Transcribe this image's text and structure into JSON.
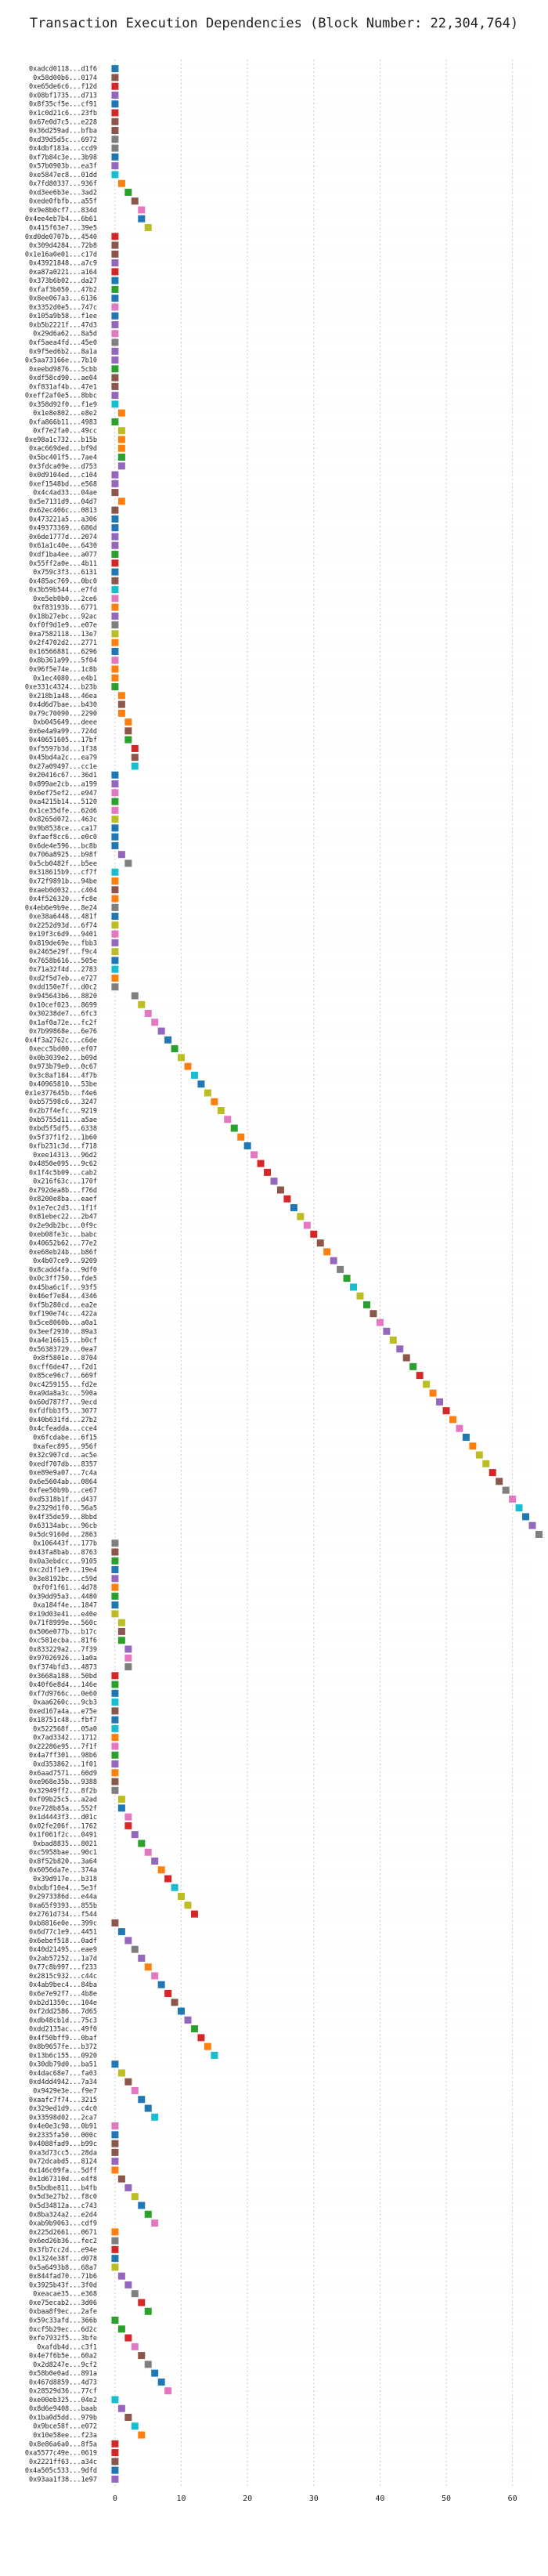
{
  "chart_data": {
    "type": "scatter",
    "title": "Transaction Execution Dependencies (Block Number: 22,304,764)",
    "xlabel": "",
    "ylabel": "",
    "xlim": [
      -2,
      63
    ],
    "xticks": [
      0,
      10,
      20,
      30,
      40,
      50,
      60
    ],
    "grid": "vertical dashed",
    "palette": [
      "#1f77b4",
      "#ff7f0e",
      "#2ca02c",
      "#d62728",
      "#9467bd",
      "#8c564b",
      "#e377c2",
      "#7f7f7f",
      "#bcbd22",
      "#17becf"
    ],
    "series": [
      {
        "labels": [
          "0xadcd0118...d1f6",
          "0x58d00b6...0174",
          "0xe65de6c6...f12d",
          "0x08bf1735...d713",
          "0x8f35cf5e...cf91",
          "0x1c0d21c6...23fb",
          "0x67e0d7c5...e228",
          "0x36d259ad...bfba",
          "0xd39d5d5c...6972",
          "0x4dbf183a...ccd9",
          "0xf7b84c3e...3b98",
          "0x57b0903b...ea3f",
          "0xe5847ec8...01dd",
          "0x7fd80337...936f",
          "0xd3ee6b3e...3ad2",
          "0xede0fbfb...a55f",
          "0x9e8b0cf7...834d",
          "0x4ee4eb7b4...6b61",
          "0x415f63e7...39e5",
          "0xd0de0707b...4540",
          "0x309d4284...72b8",
          "0x1e16a0e01...c17d",
          "0x43921848...a7c9",
          "0xa87a0221...a164",
          "0x373b6b02...da27",
          "0xfaf3b050...47b2",
          "0x8ee067a3...6136",
          "0x3352d0e5...747c",
          "0x105a9b58...f1ee",
          "0xb5b2221f...47d3",
          "0x29d6a62...8a5d",
          "0xf5aea4fd...45e0",
          "0x9f5ed6b2...8a1a",
          "0x5aa73166e...7b10",
          "0xeebd9876...5cbb",
          "0xdf58cd90...ae04",
          "0xf831af4b...47e1",
          "0xeff2af0e5...8bbc",
          "0x358d92f0...f1e9",
          "0x1e8e802...e8e2",
          "0xfa866b11...4983",
          "0xf7e2fa0...49cc",
          "0xe98a1c732...b15b",
          "0xac669ded...bf9d",
          "0x5bc401f5...7ae4",
          "0x3fdca09e...d753",
          "0x0d9104ed...c104",
          "0xef1548bd...e568",
          "0x4c4ad33...04ae",
          "0x5e7131d9...04d7",
          "0x62ec406c...0813",
          "0x473221a5...a306",
          "0x49373369...686d",
          "0x6de1777d...2074",
          "0x61a1c40e...6430",
          "0xdf1ba4ee...a077",
          "0x55ff2a0e...4b11",
          "0x759c3f3...6131",
          "0x485ac769...0bc0",
          "0x3b59b544...e7fd",
          "0xe5eb0b0...2ce6",
          "0xf83193b...6771",
          "0x18b27ebc...92ac",
          "0xf0f9d1e9...e07e",
          "0xa7582118...13e7",
          "0x2f4702d2...2771",
          "0x16566881...6296",
          "0x8b361a99...5f04",
          "0x96f5e74e...1c8b",
          "0x1ec4080...e4b1",
          "0xe331c4324...b23b",
          "0x218b1a48...46ea",
          "0x4d6d7bae...b430",
          "0x79c70090...2290",
          "0xb045649...deee",
          "0x6e4a9a99...724d",
          "0x40651605...17bf",
          "0xf5597b3d...1f38",
          "0x45bd4a2c...ea79",
          "0x27a09497...cc1e",
          "0x20416c67...36d1",
          "0x899ae2cb...a199",
          "0x6ef75ef2...e947",
          "0xa4215b14...5120",
          "0x1ce35dfe...62d6",
          "0x8265d072...463c",
          "0x9b8538ce...ca17",
          "0xfaef8cc6...e0c0",
          "0x6de4e596...bc8b",
          "0x706a8925...b98f",
          "0x5cb0482f...b5ee",
          "0x318615b9...cf7f",
          "0x72f9891b...94be",
          "0xaeb0d032...c404",
          "0x4f526320...fc8e",
          "0x4eb6e9b9e...8e24",
          "0xe38a6448...481f",
          "0x2252d93d...6f74",
          "0x19f3c6d9...9401",
          "0x819de69e...fbb3",
          "0x2465e29f...f9c4",
          "0x7658b616...505e",
          "0x71a32f4d...2783",
          "0xd2f5d7eb...e727",
          "0xdd150e7f...d0c2",
          "0x945643b6...8820",
          "0x10cef023...8699",
          "0x30238de7...6fc3",
          "0x1af0a72e...fc2f",
          "0x7b99868e...6e76",
          "0x4f3a2762c...c6de",
          "0xecc5bd00...ef07",
          "0x0b3039e2...b09d",
          "0x973b79e0...0c67",
          "0x3c8af184...4f7b",
          "0x40965810...53be",
          "0x1e377645b...f4e6",
          "0xb57598c6...3247",
          "0x2b7f4efc...9219",
          "0xb5755d11...a5ae",
          "0xbd5f5df5...6338",
          "0x5f37f1f2...1b60",
          "0xfb231c3d...f718",
          "0xee14313...96d2",
          "0x4850e095...9c62",
          "0x1f4c5b09...cab2",
          "0x216f63c...170f",
          "0x792dea8b...f76d",
          "0x8200e8ba...eaef",
          "0x1e7ec2d3...1f1f",
          "0x81ebec22...2b47",
          "0x2e9db2bc...0f9c",
          "0xeb08fe3c...babc",
          "0x40652b62...77e2",
          "0xe68eb24b...b86f",
          "0x4b07ce9...9209",
          "0x8cadd4fa...9df0",
          "0x0c3ff750...fde5",
          "0x45ba6c1f...93f5",
          "0x46ef7e84...4346",
          "0xf5b280cd...ea2e",
          "0xf190e74c...422a",
          "0x5ce8060b...a0a1",
          "0x3eef2930...89a3",
          "0xa4e16615...b0cf",
          "0x56383729...0ea7",
          "0x8f5801e...8704",
          "0xcff6de47...f2d1",
          "0x85ce96c7...669f",
          "0xc4259155...fd2e",
          "0xa9da8a3c...590a",
          "0x60d787f7...9ecd",
          "0xfdfbb3f5...3077",
          "0x40b631fd...27b2",
          "0x4cfeadda...cce4",
          "0x6fcdabe...6f15",
          "0xafec895...956f",
          "0x32c907cd...ac5e",
          "0xedf707db...8357",
          "0xe89e9a07...7c4a",
          "0x6e5604ab...0864",
          "0xfee50b9b...ce67",
          "0xd5318b1f...d437",
          "0x2329d1f0...56a5",
          "0x4f35de59...8bbd",
          "0x63134abc...96cb",
          "0x5dc9160d...2863",
          "0x106443f...177b",
          "0x43fa8bab...8763",
          "0x0a3ebdcc...9105",
          "0xc2d1f1e9...19e4",
          "0x3e8192bc...c59d",
          "0xf0f1f61...4d78",
          "0x39dd95a3...4480",
          "0xa184f4e...1847",
          "0x19d03e41...e40e",
          "0x71f8999e...560c",
          "0x506e077b...b17c",
          "0xc581ecba...81f6",
          "0x833229a2...7f39",
          "0x97026926...1a0a",
          "0xf374bfd3...4873",
          "0x3668a188...50bd",
          "0x40f6e8d4...146e",
          "0xf7d9766c...0e60",
          "0xaa6260c...9cb3",
          "0xed167a4a...e75e",
          "0x18751c48...fbf7",
          "0x522568f...05a0",
          "0x7ad3342...1712",
          "0x22286e95...7f1f",
          "0x4a7ff301...98b6",
          "0xd353862...1f01",
          "0x6aad7571...60d9",
          "0xe968e35b...9388",
          "0x32949ff2...8f2b",
          "0xf09b25c5...a2ad",
          "0xe728b85a...552f",
          "0x1d4443f3...d01c",
          "0x02fe206f...1762",
          "0x1f061f2c...0491",
          "0xbad8835...8021",
          "0xc5958bae...90c1",
          "0x8f52b820...3a64",
          "0x6056da7e...374a",
          "0x39d917e...b318",
          "0xbdbf10e4...5e3f",
          "0x2973386d...e44a",
          "0xa65f9393...855b",
          "0x2761d734...f544",
          "0xb8816e0e...399c",
          "0x6d77c1e9...4451",
          "0x6ebef518...0adf",
          "0x40d21495...eae9",
          "0x2ab57252...1a7d",
          "0x77c8b997...f233",
          "0x2815c932...c44c",
          "0x4ab9bec4...84ba",
          "0x6e7e92f7...4b8e",
          "0xb2d1350c...104e",
          "0xf2dd2586...7d65",
          "0xdb48cb1d...75c3",
          "0xdd2135ac...49f0",
          "0x4f50bff9...0baf",
          "0x8b9657fe...b372",
          "0x13b6c155...0920",
          "0x30db79d0...ba51",
          "0x4dac68e7...fa03",
          "0xd4dd4942...7a34",
          "0x9429e3e...f9e7",
          "0xaafc7f74...3215",
          "0x329ed1d9...c4c0",
          "0x33598d02...2ca7",
          "0x4e0e3c98...0b91",
          "0x2335fa50...000c",
          "0x4088fad9...b99c",
          "0xa3d73cc5...28da",
          "0x72dcabd5...8124",
          "0x146c09fa...5dff",
          "0x1d67310d...e4f8",
          "0x5bdbe811...b4fb",
          "0x5d3e27b2...f8c0",
          "0x5d34812a...c743",
          "0x8ba324a2...e2d4",
          "0xab9b9063...cdf9",
          "0x225d2661...0671",
          "0x6ed26b36...fec2",
          "0x3fb7cc2d...e94e",
          "0x1324e38f...d078",
          "0x5a6493b8...68a7",
          "0x844fad70...71b6",
          "0x3925b43f...3f0d",
          "0xeacae35...e368",
          "0xe75ecab2...3d06",
          "0xbaa8f9ec...2afe",
          "0x59c33afd...366b",
          "0xcf5b29ec...6d2c",
          "0xfe7932f5...3bfe",
          "0xafdb4d...c3f1",
          "0x4e7f6b5e...60a2",
          "0x2d8247e...9cf2",
          "0x58b0e0ad...891a",
          "0x467d8859...4d73",
          "0x28529d36...77cf",
          "0xe00eb325...04e2",
          "0x8d6e9408...baab",
          "0x1ba0d5dd...979b",
          "0x9bce58f...e072",
          "0x10e58ee...f23a",
          "0x8e86a6a0...8f5a",
          "0xa5577c49e...0619",
          "0x2221ff63...a34c",
          "0x4a505c533...9dfd",
          "0x93aa1f38...1e97"
        ],
        "x": [
          0,
          0,
          0,
          0,
          0,
          0,
          0,
          0,
          0,
          0,
          0,
          0,
          0,
          1,
          2,
          3,
          4,
          4,
          5,
          0,
          0,
          0,
          0,
          0,
          0,
          0,
          0,
          0,
          0,
          0,
          0,
          0,
          0,
          0,
          0,
          0,
          0,
          0,
          0,
          1,
          0,
          1,
          1,
          1,
          1,
          1,
          0,
          0,
          0,
          1,
          0,
          0,
          0,
          0,
          0,
          0,
          0,
          0,
          0,
          0,
          0,
          0,
          0,
          0,
          0,
          0,
          0,
          0,
          0,
          0,
          0,
          1,
          1,
          1,
          2,
          2,
          2,
          3,
          3,
          3,
          0,
          0,
          0,
          0,
          0,
          0,
          0,
          0,
          0,
          1,
          2,
          0,
          0,
          0,
          0,
          0,
          0,
          0,
          0,
          0,
          0,
          0,
          0,
          0,
          0,
          3,
          4,
          5,
          6,
          7,
          8,
          9,
          10,
          11,
          12,
          13,
          14,
          15,
          16,
          17,
          18,
          19,
          20,
          21,
          22,
          23,
          24,
          25,
          26,
          27,
          28,
          29,
          30,
          31,
          32,
          33,
          34,
          35,
          36,
          37,
          38,
          39,
          40,
          41,
          42,
          43,
          44,
          45,
          46,
          47,
          48,
          49,
          50,
          51,
          52,
          53,
          54,
          55,
          56,
          57,
          58,
          59,
          60,
          61,
          62,
          63,
          64,
          0,
          0,
          0,
          0,
          0,
          0,
          0,
          0,
          0,
          1,
          1,
          1,
          2,
          2,
          2,
          0,
          0,
          0,
          0,
          0,
          0,
          0,
          0,
          0,
          0,
          0,
          0,
          0,
          0,
          1,
          1,
          2,
          2,
          3,
          4,
          5,
          6,
          7,
          8,
          9,
          10,
          11,
          12,
          0,
          1,
          2,
          3,
          4,
          5,
          6,
          7,
          8,
          9,
          10,
          11,
          12,
          13,
          14,
          15,
          0,
          1,
          2,
          3,
          4,
          5,
          6,
          0,
          0,
          0,
          0,
          0,
          0,
          1,
          2,
          3,
          4,
          5,
          6,
          0,
          0,
          0,
          0,
          0,
          1,
          2,
          3,
          4,
          5,
          0,
          1,
          2,
          3,
          4,
          5,
          6,
          7,
          8,
          0,
          1,
          2,
          3,
          4,
          0,
          0,
          0,
          0,
          0,
          0,
          1,
          2,
          3,
          4,
          5
        ],
        "colors": [
          0,
          5,
          3,
          4,
          0,
          3,
          5,
          5,
          7,
          7,
          0,
          4,
          9,
          1,
          2,
          5,
          6,
          0,
          8,
          3,
          5,
          5,
          4,
          3,
          0,
          2,
          0,
          6,
          0,
          4,
          6,
          7,
          4,
          4,
          2,
          5,
          5,
          4,
          9,
          1,
          2,
          8,
          1,
          1,
          2,
          4,
          4,
          4,
          5,
          1,
          5,
          0,
          0,
          4,
          4,
          2,
          3,
          0,
          5,
          9,
          6,
          1,
          4,
          7,
          8,
          1,
          0,
          6,
          1,
          1,
          2,
          1,
          5,
          1,
          1,
          5,
          2,
          3,
          5,
          9,
          0,
          4,
          6,
          2,
          6,
          8,
          0,
          0,
          0,
          4,
          7,
          9,
          1,
          5,
          1,
          7,
          0,
          8,
          6,
          4,
          8,
          0,
          9,
          1,
          7,
          7,
          8,
          6,
          6,
          4,
          0,
          2,
          8,
          1,
          9,
          0,
          8,
          1,
          8,
          6,
          2,
          1,
          0,
          6,
          3,
          3,
          4,
          5,
          3,
          0,
          8,
          6,
          3,
          5,
          1,
          4,
          7,
          2,
          9,
          8,
          2,
          5,
          6,
          4,
          8,
          4,
          5,
          2,
          3,
          8,
          1,
          4,
          3,
          1,
          6,
          0,
          1,
          8,
          8,
          3,
          5,
          7,
          6,
          9,
          0,
          4,
          7,
          7,
          5,
          2,
          0,
          4,
          1,
          2,
          0,
          8,
          8,
          5,
          2,
          4,
          6,
          7,
          3,
          2,
          0,
          9,
          5,
          0,
          9,
          1,
          6,
          2,
          4,
          1,
          5,
          7,
          8,
          0,
          6,
          3,
          4,
          2,
          6,
          4,
          1,
          3,
          9,
          8,
          8,
          3,
          5,
          0,
          4,
          7,
          4,
          1,
          6,
          0,
          3,
          5,
          0,
          4,
          2,
          3,
          1,
          9,
          0,
          8,
          5,
          6,
          0,
          0,
          9,
          6,
          0,
          5,
          5,
          4,
          1,
          5,
          4,
          8,
          0,
          2,
          6,
          1,
          7,
          3,
          0,
          8,
          4,
          4,
          7,
          3,
          2,
          2,
          2,
          3,
          6,
          5,
          7,
          0,
          0,
          6,
          9,
          4,
          5,
          9,
          1,
          3,
          3,
          5,
          0,
          4,
          6,
          6
        ]
      }
    ]
  }
}
